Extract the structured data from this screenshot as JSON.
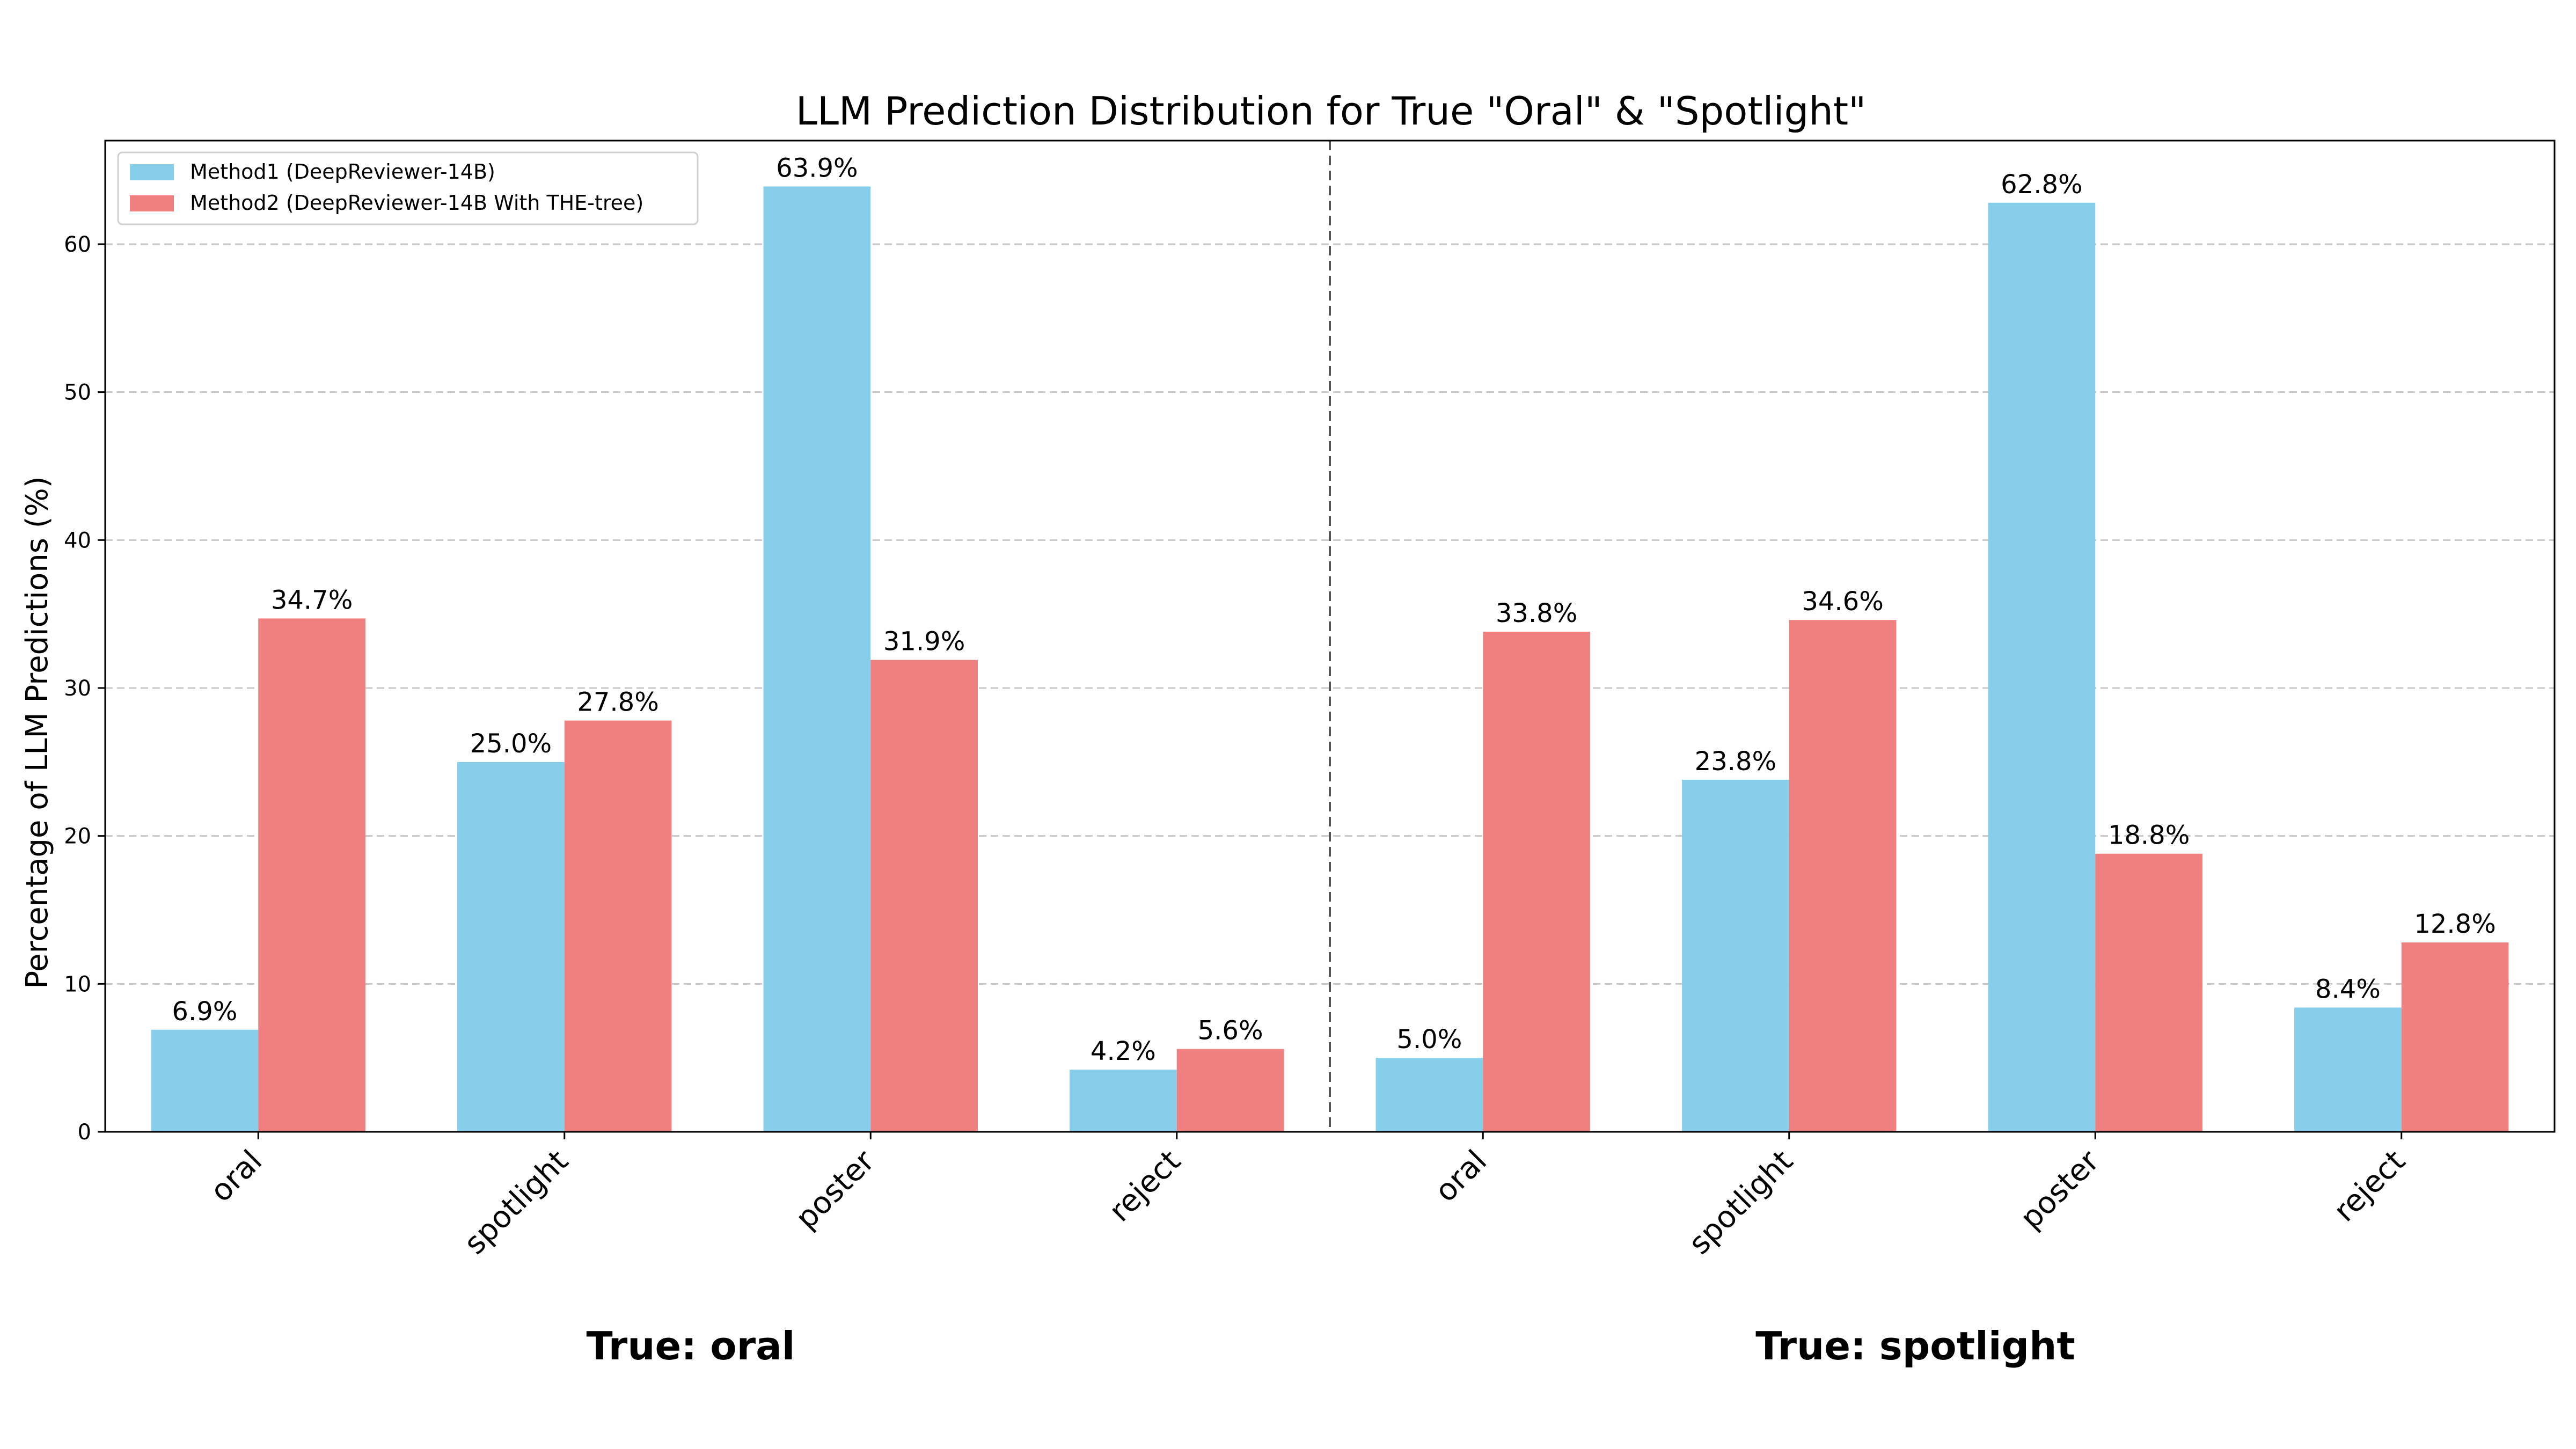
{
  "chart_data": {
    "type": "bar",
    "title": "LLM Prediction Distribution for True \"Oral\" & \"Spotlight\"",
    "ylabel": "Percentage of LLM Predictions (%)",
    "ylim": [
      0,
      67
    ],
    "yticks": [
      0,
      10,
      20,
      30,
      40,
      50,
      60
    ],
    "grid": true,
    "legend_position": "top-left",
    "categories": [
      "oral",
      "spotlight",
      "poster",
      "reject",
      "oral",
      "spotlight",
      "poster",
      "reject"
    ],
    "groups": [
      {
        "label": "True: oral",
        "categories": [
          "oral",
          "spotlight",
          "poster",
          "reject"
        ]
      },
      {
        "label": "True: spotlight",
        "categories": [
          "oral",
          "spotlight",
          "poster",
          "reject"
        ]
      }
    ],
    "series": [
      {
        "name": "Method1 (DeepReviewer-14B)",
        "color": "#87CEEB",
        "values": [
          6.9,
          25.0,
          63.9,
          4.2,
          5.0,
          23.8,
          62.8,
          8.4
        ],
        "labels": [
          "6.9%",
          "25.0%",
          "63.9%",
          "4.2%",
          "5.0%",
          "23.8%",
          "62.8%",
          "8.4%"
        ]
      },
      {
        "name": "Method2 (DeepReviewer-14B With THE-tree)",
        "color": "#F08080",
        "values": [
          34.7,
          27.8,
          31.9,
          5.6,
          33.8,
          34.6,
          18.8,
          12.8
        ],
        "labels": [
          "34.7%",
          "27.8%",
          "31.9%",
          "5.6%",
          "33.8%",
          "34.6%",
          "18.8%",
          "12.8%"
        ]
      }
    ],
    "divider": "dashed vertical line between groups"
  }
}
